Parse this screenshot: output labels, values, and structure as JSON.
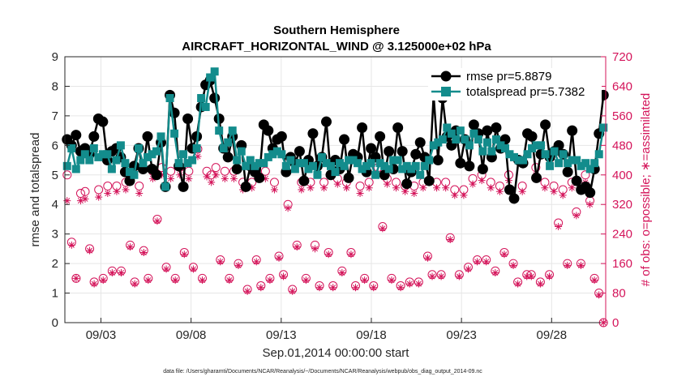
{
  "chart_data": {
    "type": "line",
    "title_line1": "Southern Hemisphere",
    "title_line2": "AIRCRAFT_HORIZONTAL_WIND @ 3.125000e+02 hPa",
    "xlabel": "Sep.01,2014 00:00:00 start",
    "ylabel_left": "rmse and totalspread",
    "ylabel_right": "# of obs: o=possible; ∗=assimilated",
    "ylim_left": [
      0,
      9
    ],
    "ylim_right": [
      0,
      720
    ],
    "xlim_days": [
      0,
      30
    ],
    "left_ticks": [
      "0",
      "1",
      "2",
      "3",
      "4",
      "5",
      "6",
      "7",
      "8",
      "9"
    ],
    "right_ticks": [
      "0",
      "80",
      "160",
      "240",
      "320",
      "400",
      "480",
      "560",
      "640",
      "720"
    ],
    "x_ticks": [
      {
        "day": 2,
        "label": "09/03"
      },
      {
        "day": 7,
        "label": "09/08"
      },
      {
        "day": 12,
        "label": "09/13"
      },
      {
        "day": 17,
        "label": "09/18"
      },
      {
        "day": 22,
        "label": "09/23"
      },
      {
        "day": 27,
        "label": "09/28"
      }
    ],
    "legend": [
      {
        "name": "rmse pr=5.8879",
        "color": "#000000",
        "marker": "circle"
      },
      {
        "name": "totalspread pr=5.7382",
        "color": "#138c8c",
        "marker": "square"
      }
    ],
    "colors": {
      "rmse": "#000000",
      "spread": "#138c8c",
      "obs": "#d4145a",
      "grid": "#e6e6e6"
    },
    "series": [
      {
        "name": "rmse",
        "values": [
          6.2,
          6.0,
          6.35,
          5.8,
          5.9,
          5.7,
          6.3,
          6.9,
          6.8,
          5.5,
          5.8,
          5.9,
          5.6,
          5.1,
          4.8,
          5.3,
          5.9,
          5.2,
          6.3,
          5.2,
          5.0,
          6.1,
          4.6,
          7.7,
          7.1,
          5.3,
          4.6,
          6.9,
          5.9,
          6.3,
          7.3,
          8.05,
          8.2,
          7.6,
          6.9,
          5.9,
          5.6,
          6.3,
          5.2,
          6.0,
          4.6,
          5.3,
          5.1,
          4.9,
          6.7,
          6.5,
          5.9,
          6.2,
          6.3,
          5.1,
          5.6,
          5.4,
          5.8,
          4.8,
          5.5,
          6.4,
          5.3,
          5.6,
          6.8,
          5.0,
          5.5,
          5.2,
          6.2,
          4.9,
          5.7,
          5.6,
          6.6,
          5.1,
          5.9,
          5.6,
          6.3,
          5.0,
          5.8,
          5.2,
          6.6,
          5.8,
          4.7,
          5.1,
          5.7,
          6.1,
          5.6,
          4.8,
          7.7,
          5.5,
          7.6,
          6.3,
          6.0,
          6.5,
          5.4,
          6.2,
          5.3,
          6.7,
          6.4,
          5.2,
          6.5,
          5.6,
          6.6,
          5.9,
          6.2,
          4.5,
          4.2,
          5.5,
          5.4,
          6.4,
          6.3,
          4.9,
          5.7,
          6.7,
          5.6,
          5.8,
          6.0,
          5.7,
          5.1,
          6.5,
          4.8,
          4.5,
          4.6,
          4.4,
          5.2,
          6.4,
          7.7
        ]
      },
      {
        "name": "totalspread",
        "values": [
          5.3,
          5.9,
          5.2,
          5.5,
          5.7,
          5.5,
          5.9,
          5.6,
          5.7,
          5.7,
          5.2,
          5.5,
          6.0,
          5.4,
          5.1,
          5.0,
          5.9,
          5.4,
          5.6,
          5.7,
          5.8,
          6.3,
          4.6,
          7.6,
          6.4,
          5.4,
          5.7,
          5.4,
          5.5,
          5.9,
          7.6,
          7.3,
          8.3,
          8.5,
          6.5,
          5.9,
          6.1,
          6.5,
          5.5,
          5.8,
          5.3,
          5.5,
          5.3,
          5.4,
          5.4,
          5.6,
          5.7,
          5.8,
          5.7,
          5.3,
          5.5,
          5.2,
          5.4,
          5.4,
          5.2,
          5.3,
          5.0,
          5.6,
          5.4,
          5.3,
          5.1,
          5.4,
          5.3,
          5.5,
          5.5,
          5.4,
          5.2,
          5.3,
          5.4,
          5.0,
          5.4,
          5.3,
          5.2,
          5.5,
          5.5,
          5.2,
          5.3,
          5.2,
          5.3,
          5.0,
          5.3,
          5.5,
          6.0,
          6.1,
          6.2,
          6.6,
          6.4,
          6.2,
          6.5,
          6.2,
          6.0,
          6.4,
          6.2,
          5.8,
          6.1,
          5.8,
          6.2,
          6.0,
          5.9,
          5.7,
          5.6,
          5.5,
          5.5,
          5.7,
          5.9,
          6.0,
          6.0,
          5.7,
          5.3,
          5.8,
          5.4,
          5.7,
          5.4,
          5.5,
          5.5,
          5.3,
          5.4,
          5.2,
          5.4,
          5.7,
          6.6
        ]
      },
      {
        "name": "obs_possible",
        "values": [
          400,
          218,
          120,
          350,
          355,
          200,
          110,
          360,
          120,
          370,
          140,
          370,
          140,
          380,
          210,
          110,
          370,
          195,
          120,
          410,
          280,
          420,
          150,
          410,
          120,
          420,
          190,
          410,
          150,
          470,
          120,
          410,
          400,
          420,
          170,
          410,
          120,
          410,
          160,
          380,
          90,
          380,
          170,
          100,
          410,
          120,
          380,
          180,
          130,
          320,
          90,
          210,
          380,
          120,
          380,
          210,
          100,
          380,
          190,
          100,
          390,
          140,
          380,
          190,
          100,
          370,
          120,
          380,
          100,
          420,
          260,
          390,
          120,
          380,
          100,
          370,
          110,
          370,
          110,
          380,
          180,
          130,
          380,
          130,
          380,
          230,
          360,
          130,
          360,
          150,
          390,
          170,
          400,
          170,
          380,
          140,
          370,
          190,
          400,
          160,
          110,
          370,
          130,
          130,
          420,
          110,
          380,
          130,
          370,
          270,
          360,
          160,
          380,
          300,
          160,
          400,
          330,
          120,
          80,
          0
        ]
      },
      {
        "name": "obs_assimilated",
        "values": [
          330,
          210,
          120,
          330,
          335,
          195,
          105,
          340,
          115,
          350,
          135,
          355,
          135,
          360,
          205,
          105,
          350,
          190,
          115,
          390,
          275,
          400,
          145,
          390,
          115,
          400,
          185,
          390,
          145,
          450,
          115,
          395,
          380,
          400,
          165,
          390,
          115,
          390,
          155,
          360,
          85,
          365,
          165,
          95,
          390,
          115,
          360,
          175,
          125,
          310,
          85,
          205,
          360,
          115,
          365,
          200,
          95,
          365,
          185,
          95,
          375,
          135,
          365,
          185,
          95,
          350,
          115,
          365,
          95,
          405,
          255,
          375,
          115,
          365,
          95,
          355,
          105,
          350,
          105,
          365,
          175,
          125,
          365,
          125,
          365,
          225,
          345,
          125,
          345,
          145,
          375,
          165,
          385,
          165,
          365,
          135,
          355,
          185,
          385,
          155,
          105,
          355,
          125,
          125,
          400,
          105,
          365,
          125,
          355,
          260,
          345,
          155,
          365,
          290,
          155,
          380,
          320,
          115,
          75,
          0
        ]
      }
    ]
  }
}
